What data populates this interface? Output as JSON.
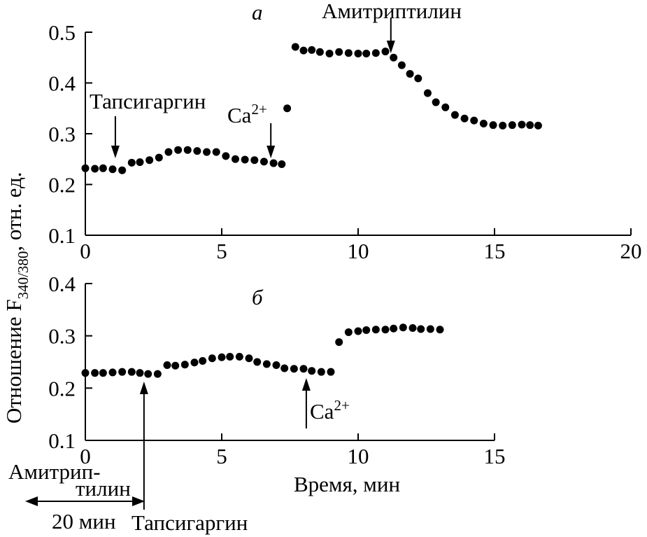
{
  "chart_data": [
    {
      "panel": "а",
      "type": "scatter",
      "xlim": [
        0,
        20
      ],
      "ylim": [
        0.1,
        0.5
      ],
      "xticks": [
        "0",
        "5",
        "10",
        "15",
        "20"
      ],
      "yticks": [
        "0.1",
        "0.2",
        "0.3",
        "0.4",
        "0.5"
      ],
      "x": [
        0.0,
        0.35,
        0.65,
        1.0,
        1.35,
        1.7,
        2.0,
        2.35,
        2.7,
        3.05,
        3.4,
        3.75,
        4.1,
        4.45,
        4.8,
        5.15,
        5.5,
        5.85,
        6.2,
        6.55,
        6.9,
        7.2,
        7.4,
        7.7,
        8.0,
        8.3,
        8.6,
        8.95,
        9.3,
        9.65,
        10.0,
        10.3,
        10.65,
        11.0,
        11.3,
        11.6,
        11.9,
        12.2,
        12.55,
        12.85,
        13.2,
        13.55,
        13.9,
        14.25,
        14.6,
        14.95,
        15.3,
        15.65,
        16.0,
        16.3,
        16.6
      ],
      "y": [
        0.232,
        0.231,
        0.232,
        0.23,
        0.228,
        0.243,
        0.244,
        0.248,
        0.253,
        0.264,
        0.268,
        0.268,
        0.266,
        0.264,
        0.264,
        0.256,
        0.25,
        0.249,
        0.248,
        0.245,
        0.242,
        0.24,
        0.35,
        0.471,
        0.464,
        0.465,
        0.461,
        0.458,
        0.461,
        0.459,
        0.458,
        0.458,
        0.459,
        0.462,
        0.45,
        0.435,
        0.418,
        0.409,
        0.38,
        0.362,
        0.352,
        0.337,
        0.33,
        0.326,
        0.32,
        0.317,
        0.316,
        0.317,
        0.318,
        0.317,
        0.316
      ],
      "annotations": [
        {
          "label": "Тапсигаргин",
          "x": 1.1
        },
        {
          "label": "Ca",
          "superscript": "2+",
          "x": 6.8
        },
        {
          "label": "Амитриптилин",
          "x": 11.2
        }
      ]
    },
    {
      "panel": "б",
      "type": "scatter",
      "xlim": [
        0,
        15
      ],
      "ylim": [
        0.1,
        0.4
      ],
      "xticks": [
        "0",
        "5",
        "10",
        "15"
      ],
      "yticks": [
        "0.1",
        "0.2",
        "0.3",
        "0.4"
      ],
      "x": [
        0.0,
        0.35,
        0.65,
        1.0,
        1.35,
        1.7,
        2.0,
        2.3,
        2.65,
        3.0,
        3.3,
        3.65,
        4.0,
        4.3,
        4.65,
        5.0,
        5.3,
        5.65,
        6.0,
        6.3,
        6.65,
        7.0,
        7.3,
        7.65,
        8.0,
        8.3,
        8.65,
        9.0,
        9.3,
        9.65,
        10.0,
        10.3,
        10.65,
        11.0,
        11.3,
        11.65,
        12.0,
        12.3,
        12.65,
        13.0
      ],
      "y": [
        0.229,
        0.229,
        0.229,
        0.23,
        0.231,
        0.231,
        0.229,
        0.227,
        0.227,
        0.244,
        0.243,
        0.245,
        0.249,
        0.252,
        0.257,
        0.259,
        0.26,
        0.26,
        0.257,
        0.25,
        0.246,
        0.244,
        0.238,
        0.237,
        0.237,
        0.233,
        0.231,
        0.231,
        0.288,
        0.307,
        0.309,
        0.311,
        0.312,
        0.312,
        0.314,
        0.316,
        0.315,
        0.313,
        0.313,
        0.312
      ],
      "annotations": [
        {
          "label": "Ca",
          "superscript": "2+",
          "x": 8.1
        },
        {
          "label": "Тапсигаргин",
          "x": 2.15
        },
        {
          "label_line1": "Амитрип-",
          "label_line2": "тилин",
          "duration": "20 мин"
        }
      ]
    }
  ],
  "ylabel_main": "Отношение F",
  "ylabel_subscript": "340/380",
  "ylabel_tail": ", отн. ед.",
  "xlabel": "Время, мин",
  "colors": {
    "ink": "#000000",
    "background": "#ffffff"
  }
}
